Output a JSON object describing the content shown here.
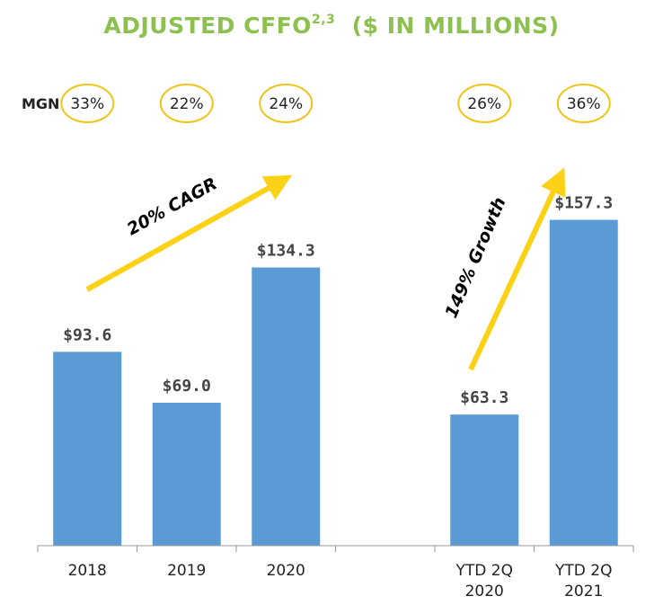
{
  "title": {
    "main": "ADJUSTED CFFO",
    "superscript": "2,3",
    "units": "($ IN MILLIONS)"
  },
  "margin_row": {
    "label": "MGN",
    "values": [
      "33%",
      "22%",
      "24%",
      "26%",
      "36%"
    ]
  },
  "annotations": {
    "cagr": "20% CAGR",
    "growth": "149% Growth"
  },
  "colors": {
    "bar": "#5b9bd5",
    "title": "#8dc14f",
    "arrow": "#fcd116",
    "margin_circle": "#f0c419"
  },
  "chart_data": {
    "type": "bar",
    "categories": [
      "2018",
      "2019",
      "2020",
      "",
      "YTD 2Q 2020",
      "YTD 2Q 2021"
    ],
    "values": [
      93.6,
      69.0,
      134.3,
      null,
      63.3,
      157.3
    ],
    "value_labels": [
      "$93.6",
      "$69.0",
      "$134.3",
      "",
      "$63.3",
      "$157.3"
    ],
    "title": "ADJUSTED CFFO2,3 ($ IN MILLIONS)",
    "xlabel": "",
    "ylabel": "",
    "ylim": [
      0,
      168
    ],
    "grid": false,
    "legend": "none"
  }
}
